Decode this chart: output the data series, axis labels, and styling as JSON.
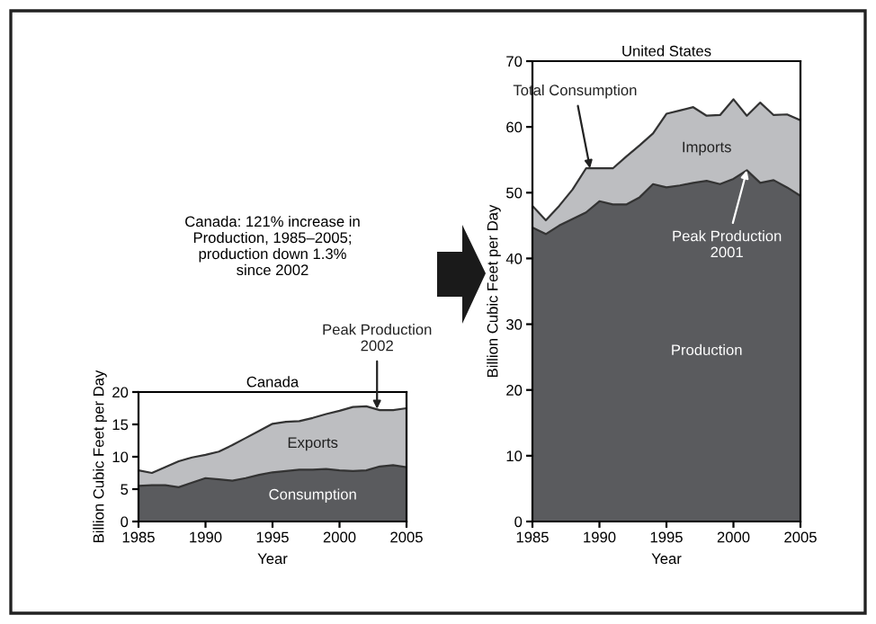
{
  "chart_data": [
    {
      "type": "area",
      "stacked": true,
      "title": "Canada",
      "xlabel": "Year",
      "ylabel": "Billion Cubic Feet per Day",
      "x": [
        1985,
        1986,
        1987,
        1988,
        1989,
        1990,
        1991,
        1992,
        1993,
        1994,
        1995,
        1996,
        1997,
        1998,
        1999,
        2000,
        2001,
        2002,
        2003,
        2004,
        2005
      ],
      "series": [
        {
          "name": "Consumption",
          "color": "#5a5b5e",
          "values": [
            5.5,
            5.6,
            5.6,
            5.3,
            6.0,
            6.7,
            6.5,
            6.3,
            6.7,
            7.2,
            7.6,
            7.8,
            8.0,
            8.0,
            8.1,
            7.9,
            7.8,
            7.9,
            8.5,
            8.7,
            8.4
          ]
        },
        {
          "name": "Exports",
          "color": "#bdbec1",
          "values": [
            2.4,
            1.9,
            2.8,
            4.0,
            3.9,
            3.6,
            4.3,
            5.5,
            6.2,
            6.8,
            7.5,
            7.6,
            7.5,
            8.0,
            8.5,
            9.2,
            9.9,
            9.9,
            8.7,
            8.5,
            9.1
          ]
        }
      ],
      "xlim": [
        1985,
        2005
      ],
      "ylim": [
        0,
        20
      ],
      "xticks": [
        1985,
        1990,
        1995,
        2000,
        2005
      ],
      "yticks": [
        0,
        5,
        10,
        15,
        20
      ],
      "annotations": [
        "Canada: 121% increase in\nProduction, 1985–2005;\nproduction down 1.3%\nsince 2002",
        {
          "text": "Peak Production 2002",
          "x": 2002.8,
          "y": 17.4
        }
      ]
    },
    {
      "type": "area",
      "stacked": true,
      "title": "United States",
      "xlabel": "Year",
      "ylabel": "Billion Cubic Feet per Day",
      "x": [
        1985,
        1986,
        1987,
        1988,
        1989,
        1990,
        1991,
        1992,
        1993,
        1994,
        1995,
        1996,
        1997,
        1998,
        1999,
        2000,
        2001,
        2002,
        2003,
        2004,
        2005
      ],
      "series": [
        {
          "name": "Production",
          "color": "#5a5b5e",
          "values": [
            44.7,
            43.7,
            45.0,
            46.0,
            47.0,
            48.7,
            48.2,
            48.2,
            49.3,
            51.3,
            50.8,
            51.1,
            51.5,
            51.8,
            51.3,
            52.1,
            53.4,
            51.5,
            51.9,
            50.8,
            49.5
          ]
        },
        {
          "name": "Imports",
          "color": "#bdbec1",
          "values": [
            3.3,
            2.1,
            3.0,
            4.5,
            6.7,
            5.0,
            5.5,
            7.3,
            7.9,
            7.7,
            11.2,
            11.4,
            11.5,
            9.9,
            10.5,
            12.1,
            8.3,
            12.2,
            9.9,
            11.1,
            11.5
          ]
        }
      ],
      "xlim": [
        1985,
        2005
      ],
      "ylim": [
        0,
        70
      ],
      "xticks": [
        1985,
        1990,
        1995,
        2000,
        2005
      ],
      "yticks": [
        0,
        10,
        20,
        30,
        40,
        50,
        60,
        70
      ],
      "annotations": [
        {
          "text": "Total Consumption",
          "x": 1989.3,
          "y": 53.7
        },
        {
          "text": "Peak Production 2001",
          "x": 2001,
          "y": 53.4
        }
      ]
    }
  ]
}
